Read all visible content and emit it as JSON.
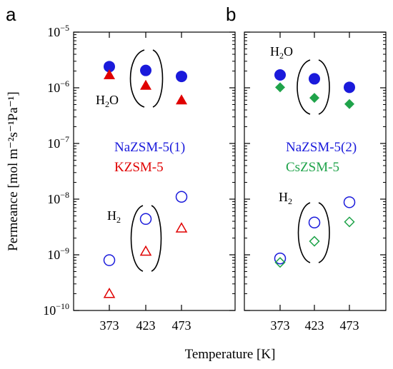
{
  "chart_data": {
    "type": "scatter",
    "xlabel": "Temperature [K]",
    "ylabel": "Permeance [mol m⁻²s⁻¹Pa⁻¹]",
    "yscale": "log",
    "ylim": [
      1e-10,
      1e-05
    ],
    "y_ticks": [
      {
        "value": 1e-05,
        "base": "10",
        "exp": "−5"
      },
      {
        "value": 1e-06,
        "base": "10",
        "exp": "−6"
      },
      {
        "value": 1e-07,
        "base": "10",
        "exp": "−7"
      },
      {
        "value": 1e-08,
        "base": "10",
        "exp": "−8"
      },
      {
        "value": 1e-09,
        "base": "10",
        "exp": "−9"
      },
      {
        "value": 1e-10,
        "base": "10",
        "exp": "−10"
      }
    ],
    "x_ticks": [
      373,
      423,
      473
    ],
    "panels": [
      {
        "label": "a",
        "legend": [
          {
            "text": "NaZSM-5(1)",
            "color": "#1a1adb"
          },
          {
            "text": "KZSM-5",
            "color": "#e00000"
          }
        ],
        "annotations": {
          "h2o_main": "H",
          "h2o_sub": "2",
          "h2o_tail": "O",
          "h2_main": "H",
          "h2_sub": "2"
        },
        "series": [
          {
            "name": "NaZSM-5(1)",
            "gas": "H2O",
            "marker": "circle-filled",
            "color": "#1a1adb",
            "x": [
              373,
              423,
              473
            ],
            "y": [
              2.4e-06,
              2.05e-06,
              1.6e-06
            ]
          },
          {
            "name": "KZSM-5",
            "gas": "H2O",
            "marker": "triangle-filled",
            "color": "#e00000",
            "x": [
              373,
              423,
              473
            ],
            "y": [
              1.7e-06,
              1.1e-06,
              6e-07
            ]
          },
          {
            "name": "NaZSM-5(1)",
            "gas": "H2",
            "marker": "circle-open",
            "color": "#1a1adb",
            "x": [
              373,
              423,
              473
            ],
            "y": [
              8e-10,
              4.4e-09,
              1.1e-08
            ]
          },
          {
            "name": "KZSM-5",
            "gas": "H2",
            "marker": "triangle-open",
            "color": "#e00000",
            "x": [
              373,
              423,
              473
            ],
            "y": [
              2e-10,
              1.15e-09,
              3e-09
            ]
          }
        ]
      },
      {
        "label": "b",
        "legend": [
          {
            "text": "NaZSM-5(2)",
            "color": "#1a1adb"
          },
          {
            "text": "CsZSM-5",
            "color": "#1fa34a"
          }
        ],
        "annotations": {
          "h2o_main": "H",
          "h2o_sub": "2",
          "h2o_tail": "O",
          "h2_main": "H",
          "h2_sub": "2"
        },
        "series": [
          {
            "name": "NaZSM-5(2)",
            "gas": "H2O",
            "marker": "circle-filled",
            "color": "#1a1adb",
            "x": [
              373,
              423,
              473
            ],
            "y": [
              1.7e-06,
              1.45e-06,
              1.02e-06
            ]
          },
          {
            "name": "CsZSM-5",
            "gas": "H2O",
            "marker": "diamond-filled",
            "color": "#1fa34a",
            "x": [
              373,
              423,
              473
            ],
            "y": [
              1.02e-06,
              6.6e-07,
              5.1e-07
            ]
          },
          {
            "name": "NaZSM-5(2)",
            "gas": "H2",
            "marker": "circle-open",
            "color": "#1a1adb",
            "x": [
              373,
              423,
              473
            ],
            "y": [
              8.6e-10,
              3.8e-09,
              8.8e-09
            ]
          },
          {
            "name": "CsZSM-5",
            "gas": "H2",
            "marker": "diamond-open",
            "color": "#1fa34a",
            "x": [
              373,
              423,
              473
            ],
            "y": [
              7.3e-10,
              1.75e-09,
              3.9e-09
            ]
          }
        ]
      }
    ]
  }
}
